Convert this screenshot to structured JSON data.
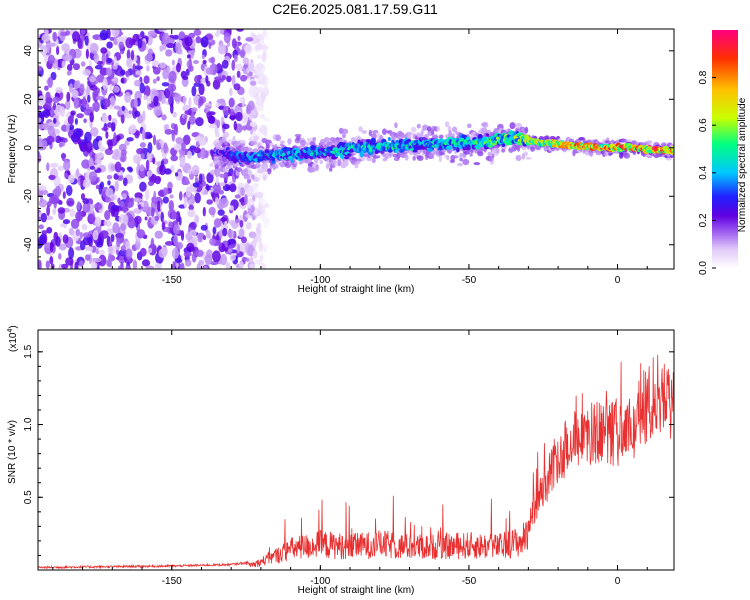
{
  "title": "C2E6.2025.081.17.59.G11",
  "chart_data": [
    {
      "type": "heatmap",
      "name": "spectrogram",
      "xlabel": "Height of straight line (km)",
      "ylabel": "Frequency (Hz)",
      "xlim": [
        -195,
        19
      ],
      "ylim": [
        -50,
        49
      ],
      "xticks": [
        -150,
        -100,
        -50,
        0
      ],
      "xtick_labels": [
        "-150",
        "-100",
        "-50",
        "0"
      ],
      "yticks": [
        -40,
        -20,
        0,
        20,
        40
      ],
      "ytick_labels": [
        "-40",
        "-20",
        "0",
        "20",
        "40"
      ],
      "colorbar": {
        "label": "Normalized spectral amplitude",
        "range": [
          0,
          1
        ],
        "ticks": [
          0.0,
          0.2,
          0.4,
          0.6,
          0.8
        ],
        "tick_labels": [
          "0.0",
          "0.2",
          "0.4",
          "0.6",
          "0.8"
        ],
        "colors": [
          "#ffffff",
          "#e0c8f8",
          "#a060f0",
          "#7000e0",
          "#2020ff",
          "#00c8ff",
          "#00ff80",
          "#c8ff00",
          "#ffc000",
          "#ff4000",
          "#ff0080"
        ]
      },
      "features": {
        "noise_region_x": [
          -195,
          -128
        ],
        "signal_track": {
          "x": [
            -135,
            -125,
            -115,
            -100,
            -85,
            -70,
            -55,
            -45,
            -35,
            -25,
            -15,
            -5,
            5,
            15,
            19
          ],
          "freq": [
            -2,
            -4,
            -3,
            -2,
            0,
            1,
            2,
            2,
            4,
            2,
            1,
            0,
            0,
            -1,
            -1
          ],
          "amplitude": [
            0.3,
            0.4,
            0.45,
            0.45,
            0.5,
            0.5,
            0.5,
            0.55,
            0.6,
            0.7,
            0.8,
            0.85,
            0.9,
            0.9,
            0.85
          ]
        }
      }
    },
    {
      "type": "line",
      "name": "snr",
      "xlabel": "Height of straight line (km)",
      "ylabel": "SNR (10 * v/v)",
      "scale_label": "(x10",
      "scale_exp": "4",
      "scale_close": ")",
      "xlim": [
        -195,
        19
      ],
      "ylim": [
        0,
        1.65
      ],
      "xticks": [
        -150,
        -100,
        -50,
        0
      ],
      "xtick_labels": [
        "-150",
        "-100",
        "-50",
        "0"
      ],
      "yticks": [
        0.5,
        1.0,
        1.5
      ],
      "ytick_labels": [
        "0.5",
        "1.0",
        "1.5"
      ],
      "color": "#e83030",
      "envelope": {
        "x": [
          -195,
          -150,
          -130,
          -122,
          -115,
          -110,
          -100,
          -90,
          -80,
          -70,
          -60,
          -50,
          -40,
          -32,
          -28,
          -24,
          -20,
          -15,
          -10,
          -5,
          0,
          5,
          10,
          15,
          19
        ],
        "y": [
          0.01,
          0.02,
          0.03,
          0.05,
          0.12,
          0.18,
          0.22,
          0.2,
          0.22,
          0.2,
          0.2,
          0.21,
          0.2,
          0.25,
          0.45,
          0.65,
          0.85,
          0.95,
          1.0,
          1.05,
          1.0,
          1.05,
          1.25,
          1.35,
          1.2
        ]
      }
    }
  ]
}
